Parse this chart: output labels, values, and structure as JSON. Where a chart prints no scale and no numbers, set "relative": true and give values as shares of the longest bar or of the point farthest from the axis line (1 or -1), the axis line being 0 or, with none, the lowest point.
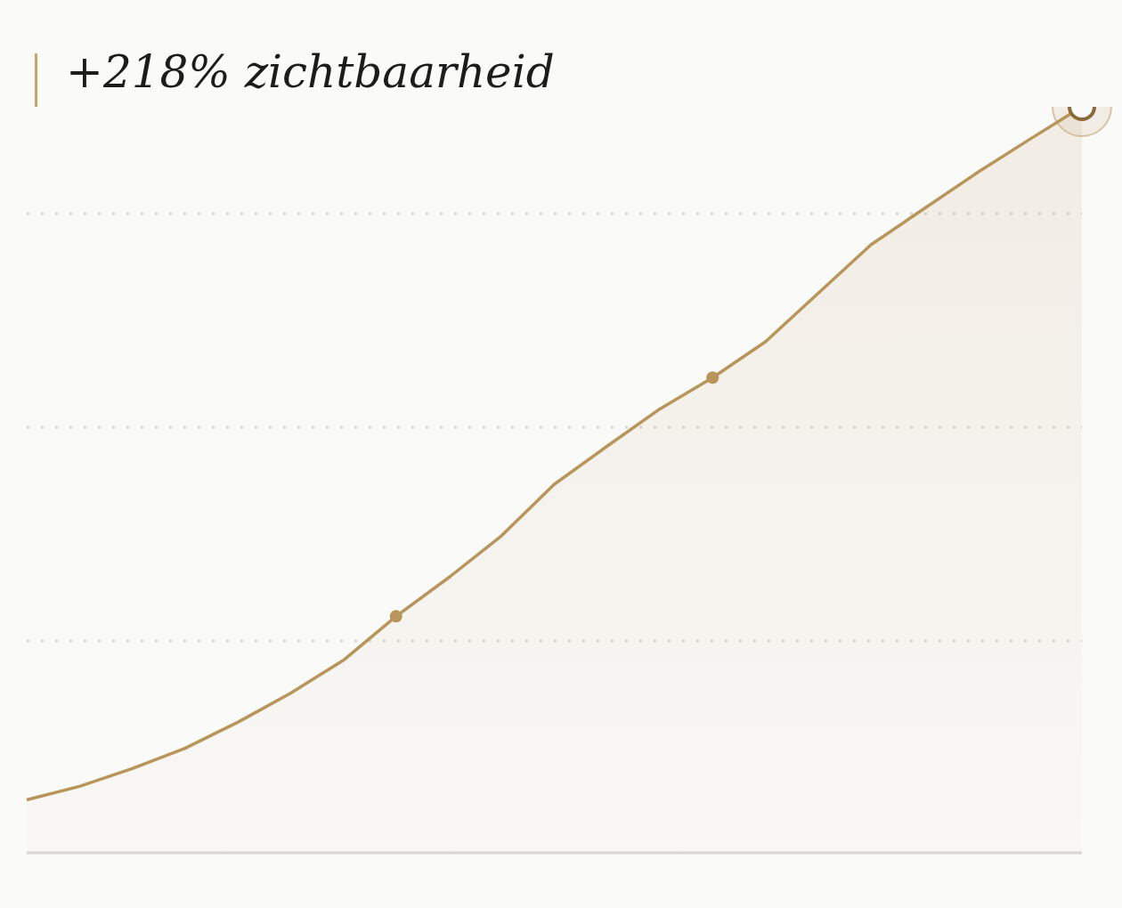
{
  "chart_data": {
    "type": "area",
    "title": "+218% zichtbaarheid",
    "relative": true,
    "categories": [
      null,
      null,
      null,
      null,
      null,
      null,
      null,
      null,
      null,
      null,
      null,
      null,
      null,
      null,
      null,
      null,
      null,
      null,
      null,
      null,
      null
    ],
    "series": [
      {
        "color": "#b8955a",
        "values": [
          0.071,
          0.089,
          0.113,
          0.14,
          0.175,
          0.214,
          0.258,
          0.317,
          0.369,
          0.425,
          0.494,
          0.545,
          0.595,
          0.637,
          0.685,
          0.75,
          0.815,
          0.863,
          0.911,
          0.956,
          1
        ]
      }
    ],
    "grid": "y",
    "marker": "none",
    "line_style": "solid",
    "legend": false
  }
}
